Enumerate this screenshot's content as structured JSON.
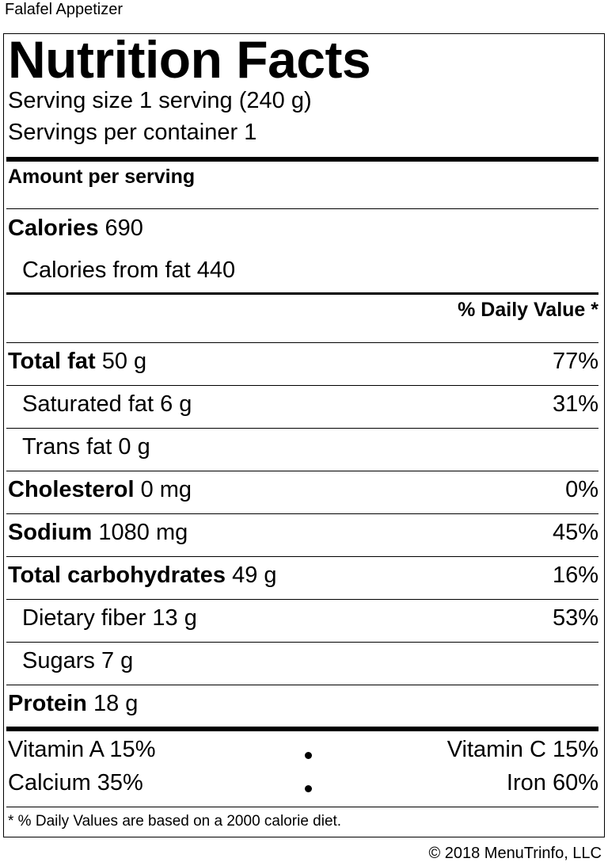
{
  "item_name": "Falafel Appetizer",
  "label": {
    "title": "Nutrition Facts",
    "serving_size": "Serving size 1 serving (240 g)",
    "servings_per_container": "Servings per container 1",
    "amount_per_serving": "Amount per serving",
    "calories_label": "Calories",
    "calories_value": "690",
    "calories_from_fat": "Calories from fat 440",
    "daily_value_header": "% Daily Value *",
    "nutrients": [
      {
        "name": "Total fat",
        "amount": "50 g",
        "dv": "77%"
      },
      {
        "name": "Saturated fat",
        "amount": "6 g",
        "dv": "31%"
      },
      {
        "name": "Trans fat",
        "amount": "0 g",
        "dv": ""
      },
      {
        "name": "Cholesterol",
        "amount": "0 mg",
        "dv": "0%"
      },
      {
        "name": "Sodium",
        "amount": "1080 mg",
        "dv": "45%"
      },
      {
        "name": "Total carbohydrates",
        "amount": "49 g",
        "dv": "16%"
      },
      {
        "name": "Dietary fiber",
        "amount": "13 g",
        "dv": "53%"
      },
      {
        "name": "Sugars",
        "amount": "7 g",
        "dv": ""
      },
      {
        "name": "Protein",
        "amount": "18 g",
        "dv": ""
      }
    ],
    "vitamins": {
      "vitamin_a": "Vitamin A 15%",
      "vitamin_c": "Vitamin C 15%",
      "calcium": "Calcium 35%",
      "iron": "Iron 60%"
    },
    "footnote": "* % Daily Values are based on a 2000 calorie diet."
  },
  "copyright": "© 2018 MenuTrinfo, LLC"
}
